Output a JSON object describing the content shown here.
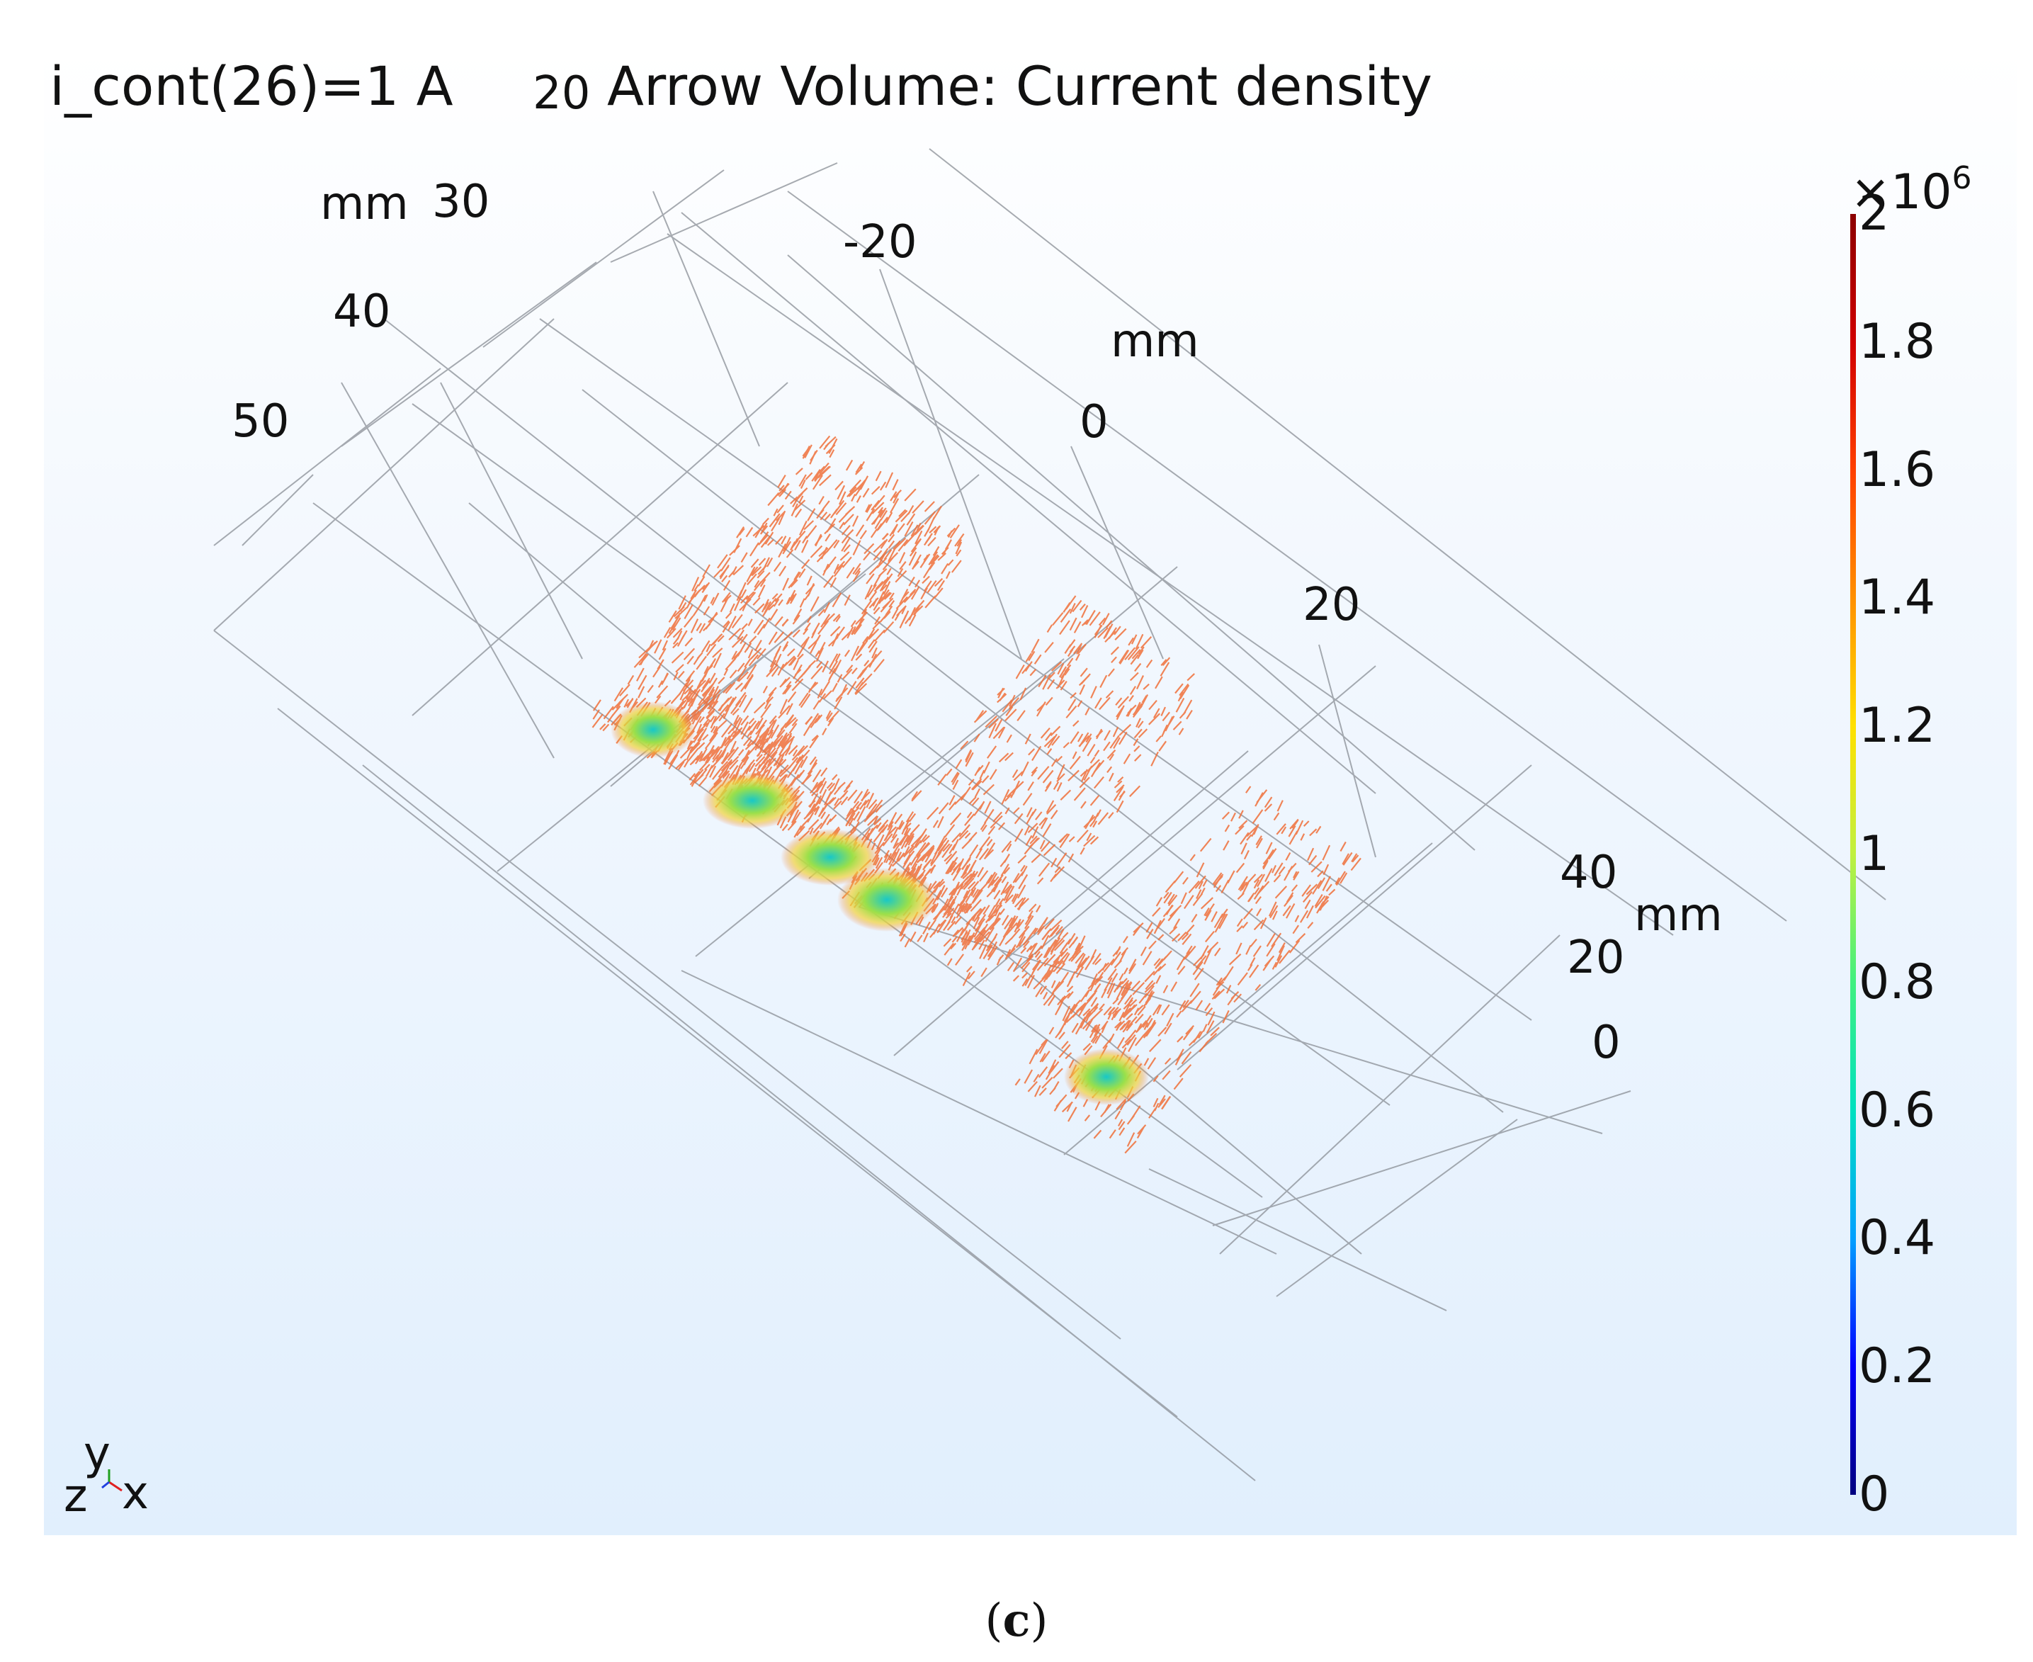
{
  "title": {
    "parameter": "i_cont(26)=1 A",
    "plot_name": "Arrow Volume: Current density"
  },
  "axis_labels": {
    "top_unit": "mm",
    "top_ticks": [
      "20",
      "30",
      "40",
      "50"
    ],
    "mid_unit": "mm",
    "mid_ticks": [
      "-20",
      "0",
      "20"
    ],
    "right_unit": "mm",
    "right_ticks": [
      "40",
      "20",
      "0"
    ]
  },
  "triad": {
    "y": "y",
    "z": "z",
    "x": "x"
  },
  "colorbar": {
    "multiplier_base": "×10",
    "multiplier_exp": "6",
    "ticks": [
      "2",
      "1.8",
      "1.6",
      "1.4",
      "1.2",
      "1",
      "0.8",
      "0.6",
      "0.4",
      "0.2",
      "0"
    ],
    "range": [
      0,
      2
    ],
    "colormap": [
      "#00007f",
      "#0000ff",
      "#00a0ff",
      "#00e0c0",
      "#40f080",
      "#c0f040",
      "#ffe000",
      "#ff9000",
      "#ff4000",
      "#d00000",
      "#8b0000"
    ]
  },
  "arrow_color": "#f0703a",
  "caption": {
    "open": "(",
    "letter": "c",
    "close": ")"
  }
}
